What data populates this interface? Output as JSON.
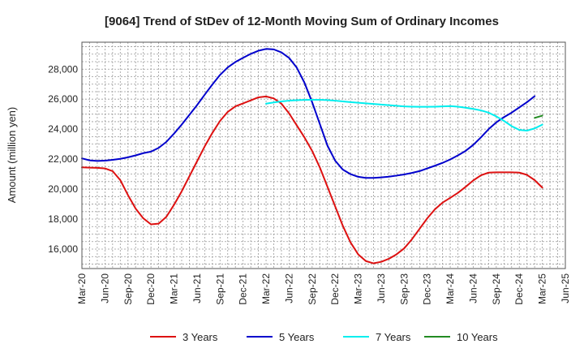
{
  "chart_data": {
    "type": "line",
    "title": "[9064]  Trend of StDev of 12-Month Moving Sum of Ordinary Incomes",
    "xlabel": "",
    "ylabel": "Amount (million yen)",
    "ylim": [
      14700,
      29800
    ],
    "y_ticks": [
      16000,
      18000,
      20000,
      22000,
      24000,
      26000,
      28000
    ],
    "y_tick_labels": [
      "16,000",
      "18,000",
      "20,000",
      "22,000",
      "24,000",
      "26,000",
      "28,000"
    ],
    "x_tick_labels": [
      "Mar-20",
      "Jun-20",
      "Sep-20",
      "Dec-20",
      "Mar-21",
      "Jun-21",
      "Sep-21",
      "Dec-21",
      "Mar-22",
      "Jun-22",
      "Sep-22",
      "Dec-22",
      "Mar-23",
      "Jun-23",
      "Sep-23",
      "Dec-23",
      "Mar-24",
      "Jun-24",
      "Sep-24",
      "Dec-24",
      "Mar-25",
      "Jun-25"
    ],
    "x_range": [
      0,
      63
    ],
    "grid": true,
    "legend_position": "bottom",
    "series": [
      {
        "name": "3 Years",
        "color": "#dd1111",
        "start_index": 0,
        "values": [
          21450,
          21430,
          21420,
          21380,
          21200,
          20600,
          19600,
          18700,
          18050,
          17650,
          17700,
          18150,
          18950,
          19850,
          20850,
          21850,
          22850,
          23750,
          24550,
          25150,
          25520,
          25720,
          25920,
          26120,
          26180,
          26050,
          25700,
          25050,
          24250,
          23450,
          22550,
          21450,
          20150,
          18850,
          17550,
          16450,
          15650,
          15200,
          15050,
          15150,
          15350,
          15650,
          16050,
          16650,
          17350,
          18050,
          18650,
          19100,
          19420,
          19750,
          20150,
          20580,
          20920,
          21100,
          21120,
          21120,
          21120,
          21100,
          20950,
          20600,
          20100
        ]
      },
      {
        "name": "5 Years",
        "color": "#0000cc",
        "start_index": 0,
        "values": [
          22050,
          21920,
          21880,
          21900,
          21950,
          22020,
          22120,
          22250,
          22400,
          22500,
          22750,
          23150,
          23700,
          24300,
          24950,
          25600,
          26300,
          26980,
          27620,
          28120,
          28480,
          28760,
          29020,
          29230,
          29350,
          29320,
          29120,
          28750,
          28100,
          27100,
          25800,
          24350,
          22900,
          21900,
          21300,
          21000,
          20820,
          20750,
          20750,
          20780,
          20830,
          20900,
          20980,
          21080,
          21200,
          21380,
          21560,
          21750,
          21980,
          22250,
          22550,
          22950,
          23450,
          24000,
          24450,
          24800,
          25100,
          25450,
          25800,
          26200
        ]
      },
      {
        "name": "7 Years",
        "color": "#00eeee",
        "start_index": 24,
        "values": [
          25700,
          25780,
          25850,
          25900,
          25930,
          25950,
          25960,
          25960,
          25940,
          25900,
          25850,
          25800,
          25760,
          25720,
          25680,
          25640,
          25600,
          25560,
          25520,
          25500,
          25490,
          25490,
          25500,
          25520,
          25540,
          25500,
          25430,
          25350,
          25250,
          25100,
          24850,
          24550,
          24200,
          23950,
          23900,
          24050,
          24300
        ]
      },
      {
        "name": "10 Years",
        "color": "#228b22",
        "start_index": 59,
        "values": [
          24750,
          24900
        ]
      }
    ]
  }
}
